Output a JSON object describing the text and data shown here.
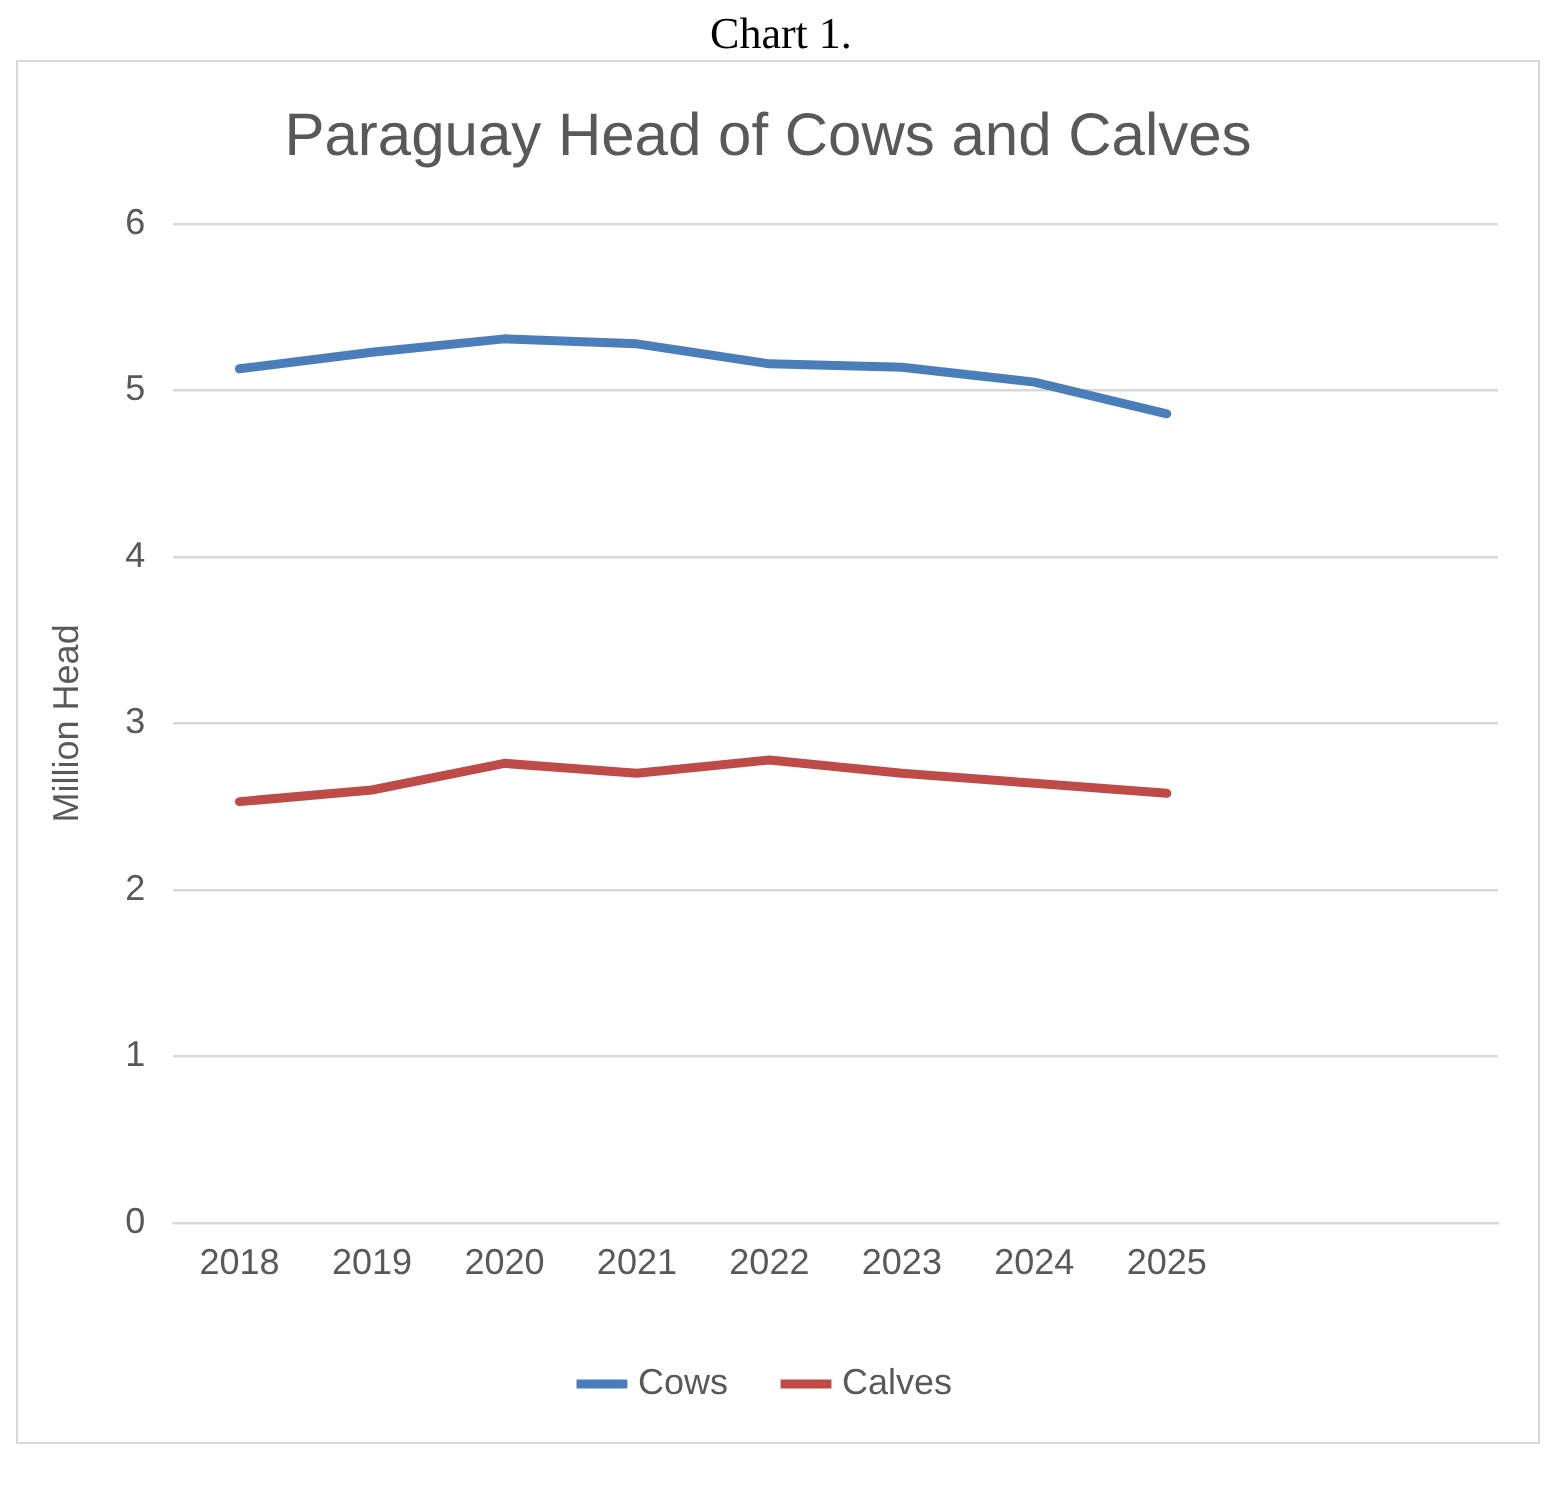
{
  "chart_data": {
    "type": "line",
    "title": "Paraguay Head of Cows and Calves",
    "ylabel": "Million Head",
    "annotations": [
      "Chart 1."
    ],
    "categories": [
      "2018",
      "2019",
      "2020",
      "2021",
      "2022",
      "2023",
      "2024",
      "2025",
      null,
      null
    ],
    "series": [
      {
        "name": "Cows",
        "color": "#4a7ebb",
        "values": [
          5.13,
          5.23,
          5.31,
          5.28,
          5.16,
          5.14,
          5.05,
          4.86,
          null,
          null
        ]
      },
      {
        "name": "Calves",
        "color": "#be4b48",
        "values": [
          2.53,
          2.6,
          2.76,
          2.7,
          2.78,
          2.7,
          2.64,
          2.58,
          null,
          null
        ]
      }
    ],
    "ylim": [
      0,
      6
    ],
    "yticks": [
      0,
      1,
      2,
      3,
      4,
      5,
      6
    ],
    "grid": "y",
    "legend": "bottom",
    "marker": "none",
    "line_style": "solid"
  }
}
